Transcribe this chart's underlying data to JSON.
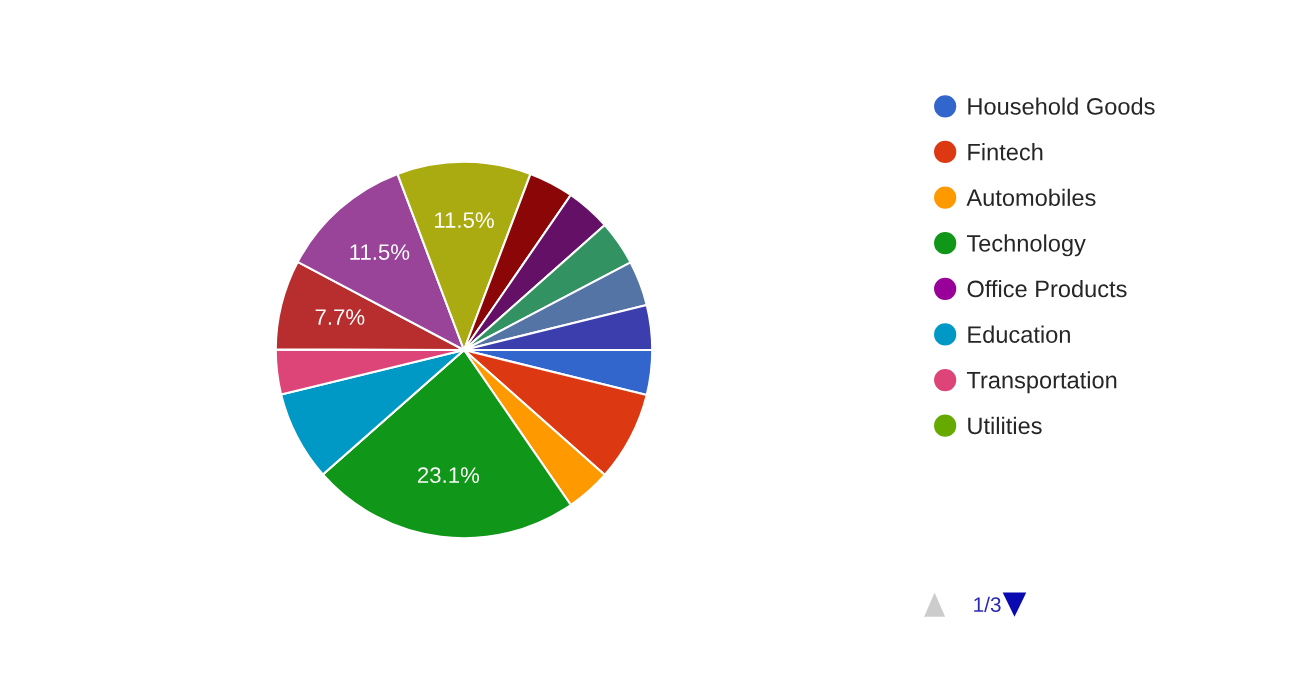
{
  "chart_data": {
    "type": "pie",
    "categories": [
      "Household Goods",
      "Fintech",
      "Automobiles",
      "Technology",
      "Office Products",
      "Education",
      "Transportation",
      "Utilities",
      null,
      null,
      null,
      null,
      null,
      null,
      null,
      null
    ],
    "values": [
      3.85,
      7.7,
      3.85,
      23.1,
      0,
      7.7,
      3.85,
      0,
      7.7,
      11.5,
      11.5,
      3.85,
      3.85,
      3.85,
      3.85,
      3.85
    ],
    "colors": [
      "#3366cc",
      "#dc3912",
      "#ff9900",
      "#109618",
      "#990099",
      "#0099c6",
      "#dd4477",
      "#66aa00",
      "#b82e2e",
      "#994499",
      "#aaaa11",
      "#8b0707",
      "#651067",
      "#329262",
      "#5574a6",
      "#3b3eac"
    ],
    "value_labels": [
      null,
      null,
      null,
      "23.1%",
      null,
      null,
      null,
      null,
      "7.7%",
      "11.5%",
      "11.5%",
      null,
      null,
      null,
      null,
      null
    ],
    "legend": "right",
    "annotations": [
      "1/3"
    ]
  }
}
